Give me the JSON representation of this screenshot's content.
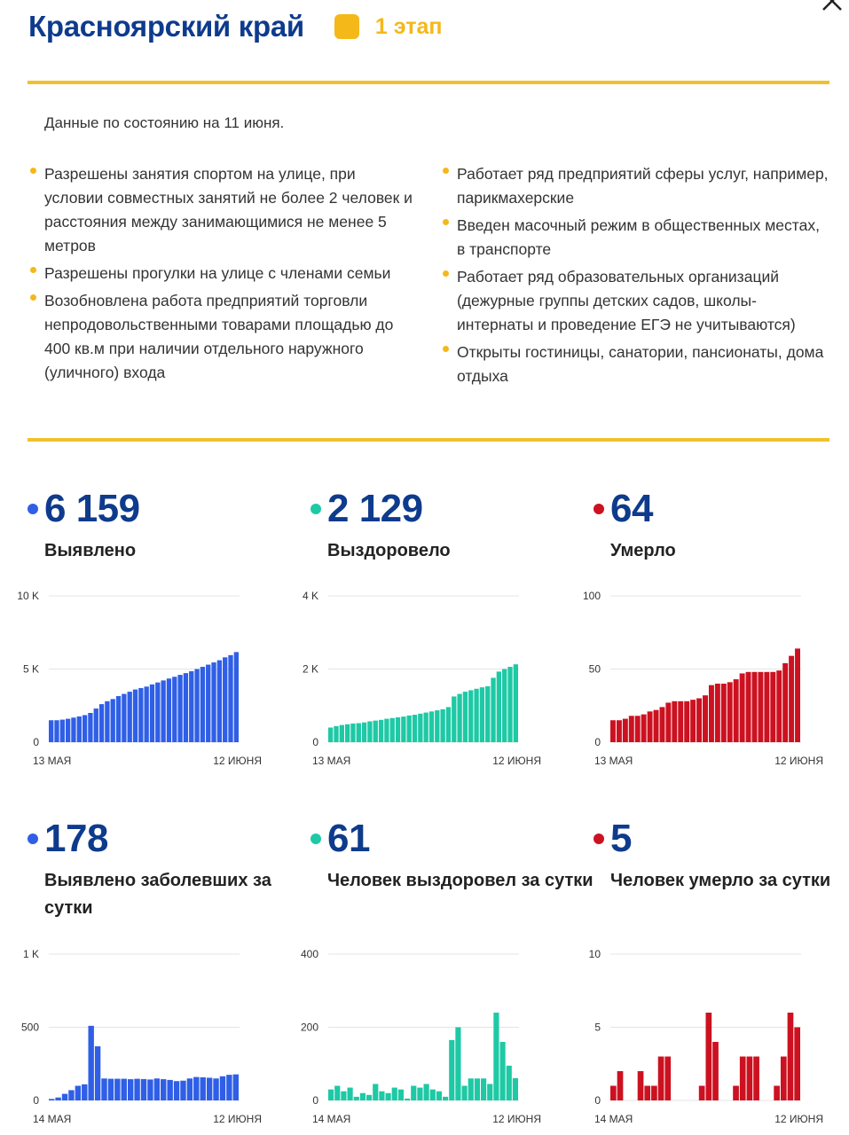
{
  "header": {
    "region": "Красноярский край",
    "stage": "1 этап",
    "stage_color": "#f4b819"
  },
  "date_note": "Данные по состоянию на 11 июня.",
  "rules_left": [
    "Разрешены занятия спортом на улице, при условии совместных занятий не более 2 человек и расстояния между занимающимися не менее 5 метров",
    "Разрешены прогулки на улице с членами семьи",
    "Возобновлена работа предприятий торговли непродовольственными товарами площадью до 400 кв.м при наличии отдельного наружного (уличного) входа"
  ],
  "rules_right": [
    "Работает ряд предприятий сферы услуг, например, парикмахерские",
    "Введен масочный режим в общественных местах, в транспорте",
    "Работает ряд образовательных организаций (дежурные группы детских садов, школы-интернаты и проведение ЕГЭ не учитываются)",
    "Открыты гостиницы, санатории, пансионаты, дома отдыха"
  ],
  "colors": {
    "blue": "#2f5fe6",
    "teal": "#1ec9a5",
    "red": "#cc1120",
    "title": "#0e3b8c",
    "accent": "#f0c12c"
  },
  "stats": [
    {
      "value": "6 159",
      "label": "Выявлено",
      "color": "#2f5fe6"
    },
    {
      "value": "2 129",
      "label": "Выздоровело",
      "color": "#1ec9a5"
    },
    {
      "value": "64",
      "label": "Умерло",
      "color": "#cc1120"
    },
    {
      "value": "178",
      "label": "Выявлено заболевших за сутки",
      "color": "#2f5fe6"
    },
    {
      "value": "61",
      "label": "Человек выздоровел за сутки",
      "color": "#1ec9a5"
    },
    {
      "value": "5",
      "label": "Человек умерло за сутки",
      "color": "#cc1120"
    }
  ],
  "chart_data": [
    {
      "type": "bar",
      "color": "#2f5fe6",
      "ylim": [
        0,
        10000
      ],
      "yticks": [
        {
          "v": 0,
          "t": "0"
        },
        {
          "v": 5000,
          "t": "5 K"
        },
        {
          "v": 10000,
          "t": "10 K"
        }
      ],
      "x_start": "13 МАЯ",
      "x_end": "12 ИЮНЯ",
      "values": [
        1500,
        1500,
        1540,
        1600,
        1680,
        1760,
        1850,
        2000,
        2300,
        2600,
        2800,
        2950,
        3150,
        3300,
        3450,
        3600,
        3700,
        3800,
        3950,
        4080,
        4220,
        4350,
        4470,
        4600,
        4720,
        4850,
        5000,
        5150,
        5300,
        5450,
        5600,
        5800,
        5950,
        6159
      ]
    },
    {
      "type": "bar",
      "color": "#1ec9a5",
      "ylim": [
        0,
        4000
      ],
      "yticks": [
        {
          "v": 0,
          "t": "0"
        },
        {
          "v": 2000,
          "t": "2 K"
        },
        {
          "v": 4000,
          "t": "4 K"
        }
      ],
      "x_start": "13 МАЯ",
      "x_end": "12 ИЮНЯ",
      "values": [
        400,
        440,
        470,
        490,
        510,
        520,
        540,
        570,
        590,
        610,
        640,
        660,
        680,
        700,
        730,
        750,
        780,
        810,
        840,
        870,
        900,
        960,
        1250,
        1320,
        1380,
        1420,
        1460,
        1500,
        1530,
        1760,
        1930,
        2000,
        2060,
        2129
      ]
    },
    {
      "type": "bar",
      "color": "#cc1120",
      "ylim": [
        0,
        100
      ],
      "yticks": [
        {
          "v": 0,
          "t": "0"
        },
        {
          "v": 50,
          "t": "50"
        },
        {
          "v": 100,
          "t": "100"
        }
      ],
      "x_start": "13 МАЯ",
      "x_end": "12 ИЮНЯ",
      "values": [
        15,
        15,
        16,
        18,
        18,
        19,
        21,
        22,
        24,
        27,
        28,
        28,
        28,
        29,
        30,
        32,
        39,
        40,
        40,
        41,
        43,
        47,
        48,
        48,
        48,
        48,
        48,
        49,
        54,
        59,
        64
      ]
    },
    {
      "type": "bar",
      "color": "#2f5fe6",
      "ylim": [
        0,
        1000
      ],
      "yticks": [
        {
          "v": 0,
          "t": "0"
        },
        {
          "v": 500,
          "t": "500"
        },
        {
          "v": 1000,
          "t": "1 K"
        }
      ],
      "x_start": "14 МАЯ",
      "x_end": "12 ИЮНЯ",
      "values": [
        10,
        20,
        45,
        70,
        100,
        110,
        510,
        370,
        150,
        148,
        148,
        148,
        145,
        148,
        146,
        143,
        150,
        145,
        140,
        132,
        135,
        150,
        160,
        158,
        155,
        150,
        165,
        175,
        178
      ]
    },
    {
      "type": "bar",
      "color": "#1ec9a5",
      "ylim": [
        0,
        400
      ],
      "yticks": [
        {
          "v": 0,
          "t": "0"
        },
        {
          "v": 200,
          "t": "200"
        },
        {
          "v": 400,
          "t": "400"
        }
      ],
      "x_start": "14 МАЯ",
      "x_end": "12 ИЮНЯ",
      "values": [
        30,
        40,
        25,
        35,
        10,
        20,
        15,
        45,
        25,
        20,
        35,
        30,
        5,
        40,
        35,
        45,
        30,
        25,
        10,
        165,
        200,
        40,
        60,
        60,
        60,
        45,
        240,
        160,
        95,
        61
      ]
    },
    {
      "type": "bar",
      "color": "#cc1120",
      "ylim": [
        0,
        10
      ],
      "yticks": [
        {
          "v": 0,
          "t": "0"
        },
        {
          "v": 5,
          "t": "5"
        },
        {
          "v": 10,
          "t": "10"
        }
      ],
      "x_start": "14 МАЯ",
      "x_end": "12 ИЮНЯ",
      "values": [
        1,
        2,
        0,
        0,
        2,
        1,
        1,
        3,
        3,
        0,
        0,
        0,
        0,
        1,
        6,
        4,
        0,
        0,
        1,
        3,
        3,
        3,
        0,
        0,
        1,
        3,
        6,
        5
      ]
    }
  ]
}
